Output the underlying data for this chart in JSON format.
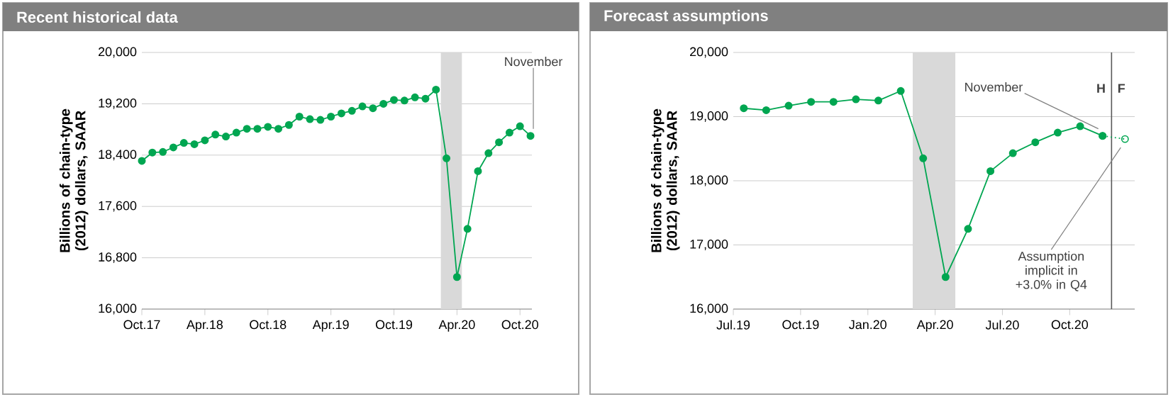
{
  "chart_data": [
    {
      "type": "line",
      "title": "Recent historical data",
      "ylabel": "Billions of chain-type (2012) dollars, SAAR",
      "x": [
        "2017-10",
        "2017-11",
        "2017-12",
        "2018-01",
        "2018-02",
        "2018-03",
        "2018-04",
        "2018-05",
        "2018-06",
        "2018-07",
        "2018-08",
        "2018-09",
        "2018-10",
        "2018-11",
        "2018-12",
        "2019-01",
        "2019-02",
        "2019-03",
        "2019-04",
        "2019-05",
        "2019-06",
        "2019-07",
        "2019-08",
        "2019-09",
        "2019-10",
        "2019-11",
        "2019-12",
        "2020-01",
        "2020-02",
        "2020-03",
        "2020-04",
        "2020-05",
        "2020-06",
        "2020-07",
        "2020-08",
        "2020-09",
        "2020-10",
        "2020-11"
      ],
      "series": [
        {
          "color": "#00a651",
          "values": [
            18310,
            18440,
            18450,
            18520,
            18590,
            18570,
            18630,
            18720,
            18690,
            18750,
            18810,
            18810,
            18840,
            18810,
            18870,
            19000,
            18960,
            18950,
            19000,
            19050,
            19090,
            19160,
            19130,
            19200,
            19260,
            19250,
            19300,
            19280,
            19420,
            18350,
            16500,
            17250,
            18150,
            18430,
            18600,
            18750,
            18850,
            18700
          ]
        }
      ],
      "marker": "circle",
      "line_style": "solid",
      "grid": "y",
      "xlim": [
        "2017-10",
        "2020-11-05"
      ],
      "xticks": [
        {
          "value": "2017-10",
          "label": "Oct.17"
        },
        {
          "value": "2018-04",
          "label": "Apr.18"
        },
        {
          "value": "2018-10",
          "label": "Oct.18"
        },
        {
          "value": "2019-04",
          "label": "Apr.19"
        },
        {
          "value": "2019-10",
          "label": "Oct.19"
        },
        {
          "value": "2020-04",
          "label": "Apr.20"
        },
        {
          "value": "2020-10",
          "label": "Oct.20"
        }
      ],
      "ylim": [
        16000,
        20000
      ],
      "yticks": [
        {
          "value": 16000,
          "label": "16,000"
        },
        {
          "value": 16800,
          "label": "16,800"
        },
        {
          "value": 17600,
          "label": "17,600"
        },
        {
          "value": 18400,
          "label": "18,400"
        },
        {
          "value": 19200,
          "label": "19,200"
        },
        {
          "value": 20000,
          "label": "20,000"
        }
      ],
      "bands": [
        {
          "axis": "x",
          "from": "2020-02-15",
          "to": "2020-04-15",
          "color": "#d9d9d9"
        }
      ],
      "annotations": [
        {
          "text": "November",
          "x": "2020-11",
          "y": 18700
        }
      ]
    },
    {
      "type": "line",
      "title": "Forecast assumptions",
      "ylabel": "Billions of chain-type (2012) dollars, SAAR",
      "series": [
        {
          "color": "#00a651",
          "line_style": "dotted",
          "x": [
            "2020-11-15",
            "2020-12-15"
          ],
          "values": [
            18700,
            18650
          ],
          "marker": "circle_open"
        },
        {
          "color": "#00a651",
          "x": [
            "2019-07-15",
            "2019-08-15",
            "2019-09-15",
            "2019-10-15",
            "2019-11-15",
            "2019-12-15",
            "2020-01-15",
            "2020-02-15",
            "2020-03-15",
            "2020-04-15",
            "2020-05-15",
            "2020-06-15",
            "2020-07-15",
            "2020-08-15",
            "2020-09-15",
            "2020-10-15",
            "2020-11-15"
          ],
          "values": [
            19130,
            19100,
            19170,
            19230,
            19230,
            19270,
            19250,
            19400,
            18350,
            16500,
            17250,
            18150,
            18430,
            18600,
            18750,
            18850,
            18700
          ]
        }
      ],
      "marker": "circle",
      "line_style": "solid",
      "grid": "y",
      "xlim": [
        "2019-07",
        "2020-12-28"
      ],
      "xticks": [
        {
          "value": "2019-07",
          "label": "Jul.19"
        },
        {
          "value": "2019-10",
          "label": "Oct.19"
        },
        {
          "value": "2020-01",
          "label": "Jan.20"
        },
        {
          "value": "2020-04",
          "label": "Apr.20"
        },
        {
          "value": "2020-07",
          "label": "Jul.20"
        },
        {
          "value": "2020-10",
          "label": "Oct.20"
        }
      ],
      "ylim": [
        16000,
        20000
      ],
      "yticks": [
        {
          "value": 16000,
          "label": "16,000"
        },
        {
          "value": 17000,
          "label": "17,000"
        },
        {
          "value": 18000,
          "label": "18,000"
        },
        {
          "value": 19000,
          "label": "19,000"
        },
        {
          "value": 20000,
          "label": "20,000"
        }
      ],
      "bands": [
        {
          "axis": "x",
          "from": "2020-03-01",
          "to": "2020-04-28",
          "color": "#d9d9d9"
        }
      ],
      "ref_lines": [
        {
          "axis": "x",
          "value": "2020-11-27",
          "color": "#595959"
        }
      ],
      "annotations": [
        {
          "text": "November",
          "x": "2020-11-15",
          "y": 18700
        },
        {
          "text": "Assumption implicit in +3.0% in Q4",
          "x": "2020-12-15",
          "y": 18650
        },
        "H",
        "F"
      ]
    }
  ]
}
